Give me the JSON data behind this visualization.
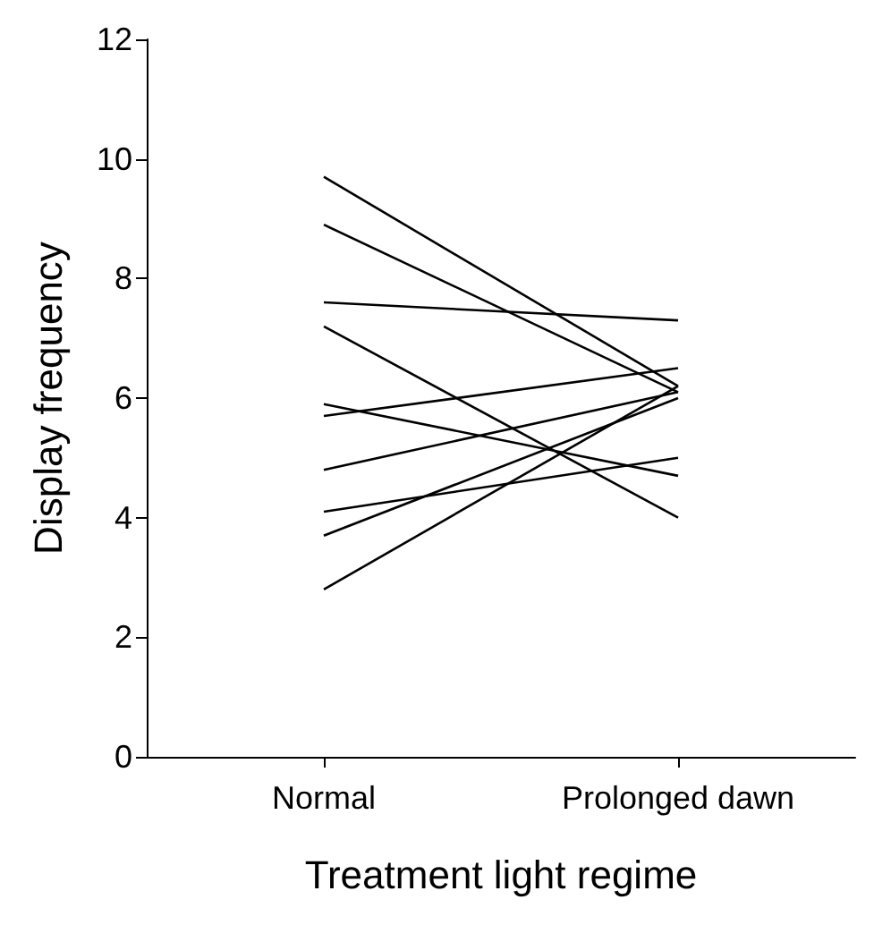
{
  "chart_data": {
    "type": "line",
    "xlabel": "Treatment light regime",
    "ylabel": "Display frequency",
    "categories": [
      "Normal",
      "Prolonged dawn"
    ],
    "series": [
      {
        "color": "#000000",
        "values": [
          9.7,
          6.2
        ]
      },
      {
        "color": "#000000",
        "values": [
          8.9,
          6.1
        ]
      },
      {
        "color": "#000000",
        "values": [
          7.6,
          7.3
        ]
      },
      {
        "color": "#000000",
        "values": [
          7.2,
          4.0
        ]
      },
      {
        "color": "#000000",
        "values": [
          5.9,
          4.7
        ]
      },
      {
        "color": "#000000",
        "values": [
          5.7,
          6.5
        ]
      },
      {
        "color": "#000000",
        "values": [
          4.8,
          6.1
        ]
      },
      {
        "color": "#000000",
        "values": [
          4.1,
          5.0
        ]
      },
      {
        "color": "#000000",
        "values": [
          3.7,
          6.0
        ]
      },
      {
        "color": "#000000",
        "values": [
          2.8,
          6.2
        ]
      }
    ],
    "ylim": [
      0,
      12
    ],
    "yticks": [
      0,
      2,
      4,
      6,
      8,
      10,
      12
    ],
    "grid": false,
    "marker": "none",
    "line_style": "solid"
  }
}
